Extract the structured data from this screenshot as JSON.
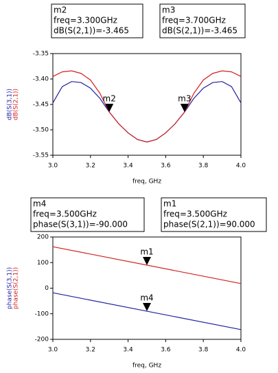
{
  "chart_data": [
    {
      "type": "line",
      "x": [
        3.0,
        3.05,
        3.1,
        3.15,
        3.2,
        3.25,
        3.3,
        3.35,
        3.4,
        3.45,
        3.5,
        3.55,
        3.6,
        3.65,
        3.7,
        3.75,
        3.8,
        3.85,
        3.9,
        3.95,
        4.0
      ],
      "series": [
        {
          "name": "dB(S(3,1))",
          "color": "#1f1fa0",
          "values": [
            -3.447,
            -3.415,
            -3.405,
            -3.407,
            -3.418,
            -3.438,
            -3.465,
            -3.488,
            -3.506,
            -3.519,
            -3.524,
            -3.519,
            -3.506,
            -3.488,
            -3.465,
            -3.438,
            -3.418,
            -3.407,
            -3.405,
            -3.415,
            -3.447
          ]
        },
        {
          "name": "dB(S(2,1))",
          "color": "#d02020",
          "values": [
            -3.395,
            -3.386,
            -3.384,
            -3.389,
            -3.402,
            -3.428,
            -3.465,
            -3.488,
            -3.506,
            -3.519,
            -3.524,
            -3.519,
            -3.506,
            -3.488,
            -3.465,
            -3.428,
            -3.402,
            -3.389,
            -3.384,
            -3.386,
            -3.395
          ]
        }
      ],
      "xlabel": "freq, GHz",
      "xlim": [
        3.0,
        4.0
      ],
      "xticks": [
        {
          "value": 3,
          "label": "3.0"
        },
        3.2,
        3.4,
        3.6,
        3.8,
        {
          "value": 4,
          "label": "4.0"
        }
      ],
      "ylim": [
        -3.55,
        -3.35
      ],
      "yticks": [
        -3.55,
        {
          "value": -3.5,
          "label": "-3.50"
        },
        -3.45,
        {
          "value": -3.4,
          "label": "-3.40"
        },
        -3.35
      ],
      "markers": [
        {
          "name": "m2",
          "x": 3.3,
          "y": -3.465,
          "readout": [
            "freq=3.300GHz",
            "dB(S(2,1))=-3.465"
          ]
        },
        {
          "name": "m3",
          "x": 3.7,
          "y": -3.465,
          "readout": [
            "freq=3.700GHz",
            "dB(S(2,1))=-3.465"
          ]
        }
      ]
    },
    {
      "type": "line",
      "x": [
        3.0,
        4.0
      ],
      "series": [
        {
          "name": "phase(S(3,1))",
          "color": "#1f1fa0",
          "values": [
            -18,
            -162
          ]
        },
        {
          "name": "phase(S(2,1))",
          "color": "#d02020",
          "values": [
            162,
            18
          ]
        }
      ],
      "xlabel": "freq, GHz",
      "xlim": [
        3.0,
        4.0
      ],
      "xticks": [
        {
          "value": 3,
          "label": "3.0"
        },
        3.2,
        3.4,
        3.6,
        3.8,
        {
          "value": 4,
          "label": "4.0"
        }
      ],
      "ylim": [
        -200,
        200
      ],
      "yticks": [
        -200,
        -100,
        0,
        100,
        200
      ],
      "markers": [
        {
          "name": "m4",
          "x": 3.5,
          "y": -90,
          "readout": [
            "freq=3.500GHz",
            "phase(S(3,1))=-90.000"
          ]
        },
        {
          "name": "m1",
          "x": 3.5,
          "y": 90,
          "readout": [
            "freq=3.500GHz",
            "phase(S(2,1))=90.000"
          ]
        }
      ]
    }
  ]
}
